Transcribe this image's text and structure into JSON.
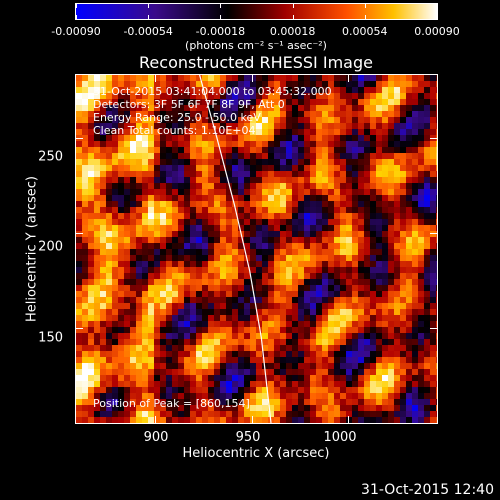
{
  "colorbar": {
    "ticks": [
      "-0.00090",
      "-0.00054",
      "-0.00018",
      "0.00018",
      "0.00054",
      "0.00090"
    ],
    "units": "(photons cm⁻² s⁻¹ asec⁻²)"
  },
  "plot": {
    "title": "Reconstructed RHESSI Image",
    "annotations": [
      "31-Oct-2015 03:41:04.000 to 03:45:32.000",
      "Detectors: 3F 5F 6F 7F 8F 9F, Att 0",
      "Energy Range: 25.0 - 50.0 keV",
      "Clean     Total counts: 1.10E+04"
    ],
    "peak_note": "Position of Peak = [860,154]",
    "xlabel": "Heliocentric X (arcsec)",
    "ylabel": "Heliocentric Y (arcsec)",
    "xticks": [
      "900",
      "950",
      "1000"
    ],
    "yticks": [
      "250",
      "200",
      "150"
    ]
  },
  "footer": {
    "timestamp": "31-Oct-2015 12:40"
  },
  "chart_data": {
    "type": "heatmap",
    "title": "Reconstructed RHESSI Image",
    "xlabel": "Heliocentric X (arcsec)",
    "ylabel": "Heliocentric Y (arcsec)",
    "xlim": [
      859,
      1046
    ],
    "ylim": [
      100,
      283
    ],
    "xticks": [
      900,
      950,
      1000
    ],
    "yticks": [
      150,
      200,
      250
    ],
    "colorbar_range": [
      -0.0009,
      0.0009
    ],
    "colormap": [
      "#0000ff",
      "#3a0a8a",
      "#000000",
      "#b00000",
      "#ff6000",
      "#ffd000",
      "#ffffff"
    ],
    "limb_color": "#ffffff"
  }
}
